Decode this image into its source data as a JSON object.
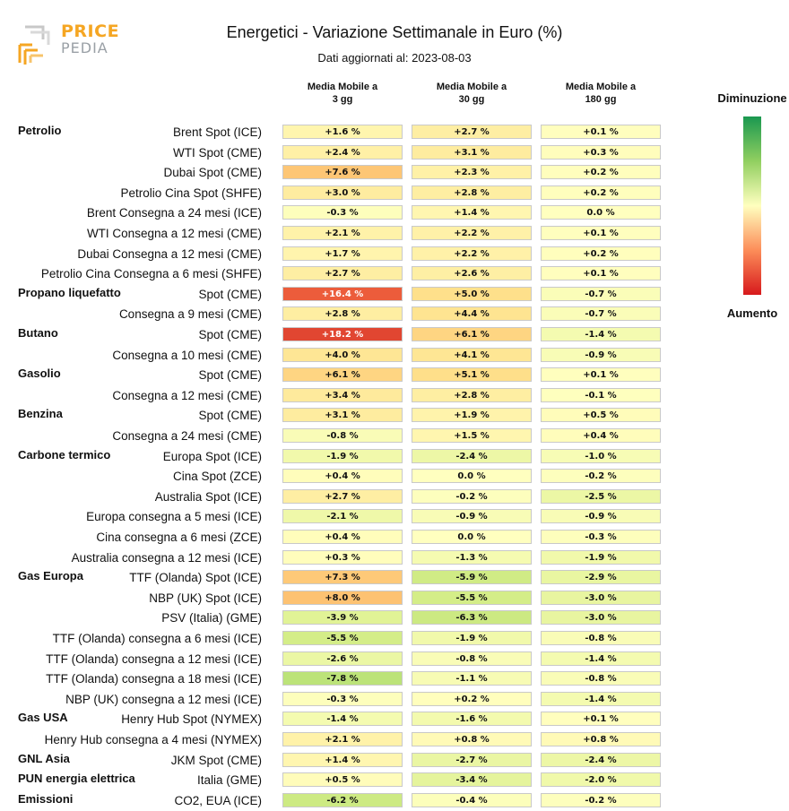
{
  "logo": {
    "line1": "PRICE",
    "line2": "PEDIA"
  },
  "title": "Energetici - Variazione Settimanale in Euro (%)",
  "subtitle": "Dati aggiornati al: 2023-08-03",
  "columns": [
    "Media Mobile a\n3 gg",
    "Media Mobile a\n30 gg",
    "Media Mobile a\n180 gg"
  ],
  "legend": {
    "top": "Diminuzione",
    "bottom": "Aumento"
  },
  "chart_data": {
    "type": "heatmap",
    "title": "Energetici - Variazione Settimanale in Euro (%)",
    "subtitle": "Dati aggiornati al: 2023-08-03",
    "color_scale": {
      "negative": "#1a9850",
      "zero": "#ffffbf",
      "positive": "#d7191c",
      "min": -20,
      "max": 20
    },
    "rows": [
      {
        "group": "Petrolio",
        "label": "Brent Spot (ICE)",
        "values": [
          "+1.6 %",
          "+2.7 %",
          "+0.1 %"
        ],
        "nums": [
          1.6,
          2.7,
          0.1
        ]
      },
      {
        "group": "",
        "label": "WTI Spot (CME)",
        "values": [
          "+2.4 %",
          "+3.1 %",
          "+0.3 %"
        ],
        "nums": [
          2.4,
          3.1,
          0.3
        ]
      },
      {
        "group": "",
        "label": "Dubai Spot (CME)",
        "values": [
          "+7.6 %",
          "+2.3 %",
          "+0.2 %"
        ],
        "nums": [
          7.6,
          2.3,
          0.2
        ]
      },
      {
        "group": "",
        "label": "Petrolio Cina Spot (SHFE)",
        "values": [
          "+3.0 %",
          "+2.8 %",
          "+0.2 %"
        ],
        "nums": [
          3.0,
          2.8,
          0.2
        ]
      },
      {
        "group": "",
        "label": "Brent Consegna a 24 mesi (ICE)",
        "values": [
          "-0.3 %",
          "+1.4 %",
          "0.0 %"
        ],
        "nums": [
          -0.3,
          1.4,
          0.0
        ]
      },
      {
        "group": "",
        "label": "WTI Consegna a 12 mesi (CME)",
        "values": [
          "+2.1 %",
          "+2.2 %",
          "+0.1 %"
        ],
        "nums": [
          2.1,
          2.2,
          0.1
        ]
      },
      {
        "group": "",
        "label": "Dubai Consegna a 12 mesi (CME)",
        "values": [
          "+1.7 %",
          "+2.2 %",
          "+0.2 %"
        ],
        "nums": [
          1.7,
          2.2,
          0.2
        ]
      },
      {
        "group": "",
        "label": "Petrolio Cina Consegna a 6 mesi (SHFE)",
        "values": [
          "+2.7 %",
          "+2.6 %",
          "+0.1 %"
        ],
        "nums": [
          2.7,
          2.6,
          0.1
        ]
      },
      {
        "group": "Propano liquefatto",
        "label": "Spot (CME)",
        "values": [
          "+16.4 %",
          "+5.0 %",
          "-0.7 %"
        ],
        "nums": [
          16.4,
          5.0,
          -0.7
        ]
      },
      {
        "group": "",
        "label": "Consegna a 9 mesi (CME)",
        "values": [
          "+2.8 %",
          "+4.4 %",
          "-0.7 %"
        ],
        "nums": [
          2.8,
          4.4,
          -0.7
        ]
      },
      {
        "group": "Butano",
        "label": "Spot (CME)",
        "values": [
          "+18.2 %",
          "+6.1 %",
          "-1.4 %"
        ],
        "nums": [
          18.2,
          6.1,
          -1.4
        ]
      },
      {
        "group": "",
        "label": "Consegna a 10 mesi (CME)",
        "values": [
          "+4.0 %",
          "+4.1 %",
          "-0.9 %"
        ],
        "nums": [
          4.0,
          4.1,
          -0.9
        ]
      },
      {
        "group": "Gasolio",
        "label": "Spot (CME)",
        "values": [
          "+6.1 %",
          "+5.1 %",
          "+0.1 %"
        ],
        "nums": [
          6.1,
          5.1,
          0.1
        ]
      },
      {
        "group": "",
        "label": "Consegna a 12 mesi (CME)",
        "values": [
          "+3.4 %",
          "+2.8 %",
          "-0.1 %"
        ],
        "nums": [
          3.4,
          2.8,
          -0.1
        ]
      },
      {
        "group": "Benzina",
        "label": "Spot (CME)",
        "values": [
          "+3.1 %",
          "+1.9 %",
          "+0.5 %"
        ],
        "nums": [
          3.1,
          1.9,
          0.5
        ]
      },
      {
        "group": "",
        "label": "Consegna a 24 mesi (CME)",
        "values": [
          "-0.8 %",
          "+1.5 %",
          "+0.4 %"
        ],
        "nums": [
          -0.8,
          1.5,
          0.4
        ]
      },
      {
        "group": "Carbone termico",
        "label": "Europa Spot (ICE)",
        "values": [
          "-1.9 %",
          "-2.4 %",
          "-1.0 %"
        ],
        "nums": [
          -1.9,
          -2.4,
          -1.0
        ]
      },
      {
        "group": "",
        "label": "Cina Spot (ZCE)",
        "values": [
          "+0.4 %",
          "0.0 %",
          "-0.2 %"
        ],
        "nums": [
          0.4,
          0.0,
          -0.2
        ]
      },
      {
        "group": "",
        "label": "Australia Spot (ICE)",
        "values": [
          "+2.7 %",
          "-0.2 %",
          "-2.5 %"
        ],
        "nums": [
          2.7,
          -0.2,
          -2.5
        ]
      },
      {
        "group": "",
        "label": "Europa consegna a 5 mesi (ICE)",
        "values": [
          "-2.1 %",
          "-0.9 %",
          "-0.9 %"
        ],
        "nums": [
          -2.1,
          -0.9,
          -0.9
        ]
      },
      {
        "group": "",
        "label": "Cina consegna a 6 mesi (ZCE)",
        "values": [
          "+0.4 %",
          "0.0 %",
          "-0.3 %"
        ],
        "nums": [
          0.4,
          0.0,
          -0.3
        ]
      },
      {
        "group": "",
        "label": "Australia consegna a 12 mesi (ICE)",
        "values": [
          "+0.3 %",
          "-1.3 %",
          "-1.9 %"
        ],
        "nums": [
          0.3,
          -1.3,
          -1.9
        ]
      },
      {
        "group": "Gas Europa",
        "label": "TTF (Olanda) Spot (ICE)",
        "values": [
          "+7.3 %",
          "-5.9 %",
          "-2.9 %"
        ],
        "nums": [
          7.3,
          -5.9,
          -2.9
        ]
      },
      {
        "group": "",
        "label": "NBP (UK) Spot (ICE)",
        "values": [
          "+8.0 %",
          "-5.5 %",
          "-3.0 %"
        ],
        "nums": [
          8.0,
          -5.5,
          -3.0
        ]
      },
      {
        "group": "",
        "label": "PSV (Italia) (GME)",
        "values": [
          "-3.9 %",
          "-6.3 %",
          "-3.0 %"
        ],
        "nums": [
          -3.9,
          -6.3,
          -3.0
        ]
      },
      {
        "group": "",
        "label": "TTF (Olanda) consegna a 6 mesi (ICE)",
        "values": [
          "-5.5 %",
          "-1.9 %",
          "-0.8 %"
        ],
        "nums": [
          -5.5,
          -1.9,
          -0.8
        ]
      },
      {
        "group": "",
        "label": "TTF (Olanda) consegna a 12 mesi (ICE)",
        "values": [
          "-2.6 %",
          "-0.8 %",
          "-1.4 %"
        ],
        "nums": [
          -2.6,
          -0.8,
          -1.4
        ]
      },
      {
        "group": "",
        "label": "TTF (Olanda) consegna a 18 mesi (ICE)",
        "values": [
          "-7.8 %",
          "-1.1 %",
          "-0.8 %"
        ],
        "nums": [
          -7.8,
          -1.1,
          -0.8
        ]
      },
      {
        "group": "",
        "label": "NBP (UK) consegna a 12 mesi (ICE)",
        "values": [
          "-0.3 %",
          "+0.2 %",
          "-1.4 %"
        ],
        "nums": [
          -0.3,
          0.2,
          -1.4
        ]
      },
      {
        "group": "Gas USA",
        "label": "Henry Hub Spot (NYMEX)",
        "values": [
          "-1.4 %",
          "-1.6 %",
          "+0.1 %"
        ],
        "nums": [
          -1.4,
          -1.6,
          0.1
        ]
      },
      {
        "group": "",
        "label": "Henry Hub consegna a 4 mesi (NYMEX)",
        "values": [
          "+2.1 %",
          "+0.8 %",
          "+0.8 %"
        ],
        "nums": [
          2.1,
          0.8,
          0.8
        ]
      },
      {
        "group": "GNL Asia",
        "label": "JKM Spot (CME)",
        "values": [
          "+1.4 %",
          "-2.7 %",
          "-2.4 %"
        ],
        "nums": [
          1.4,
          -2.7,
          -2.4
        ]
      },
      {
        "group": "PUN energia elettrica",
        "label": "Italia (GME)",
        "values": [
          "+0.5 %",
          "-3.4 %",
          "-2.0 %"
        ],
        "nums": [
          0.5,
          -3.4,
          -2.0
        ]
      },
      {
        "group": "Emissioni",
        "label": "CO2, EUA (ICE)",
        "values": [
          "-6.2 %",
          "-0.4 %",
          "-0.2 %"
        ],
        "nums": [
          -6.2,
          -0.4,
          -0.2
        ]
      }
    ]
  }
}
